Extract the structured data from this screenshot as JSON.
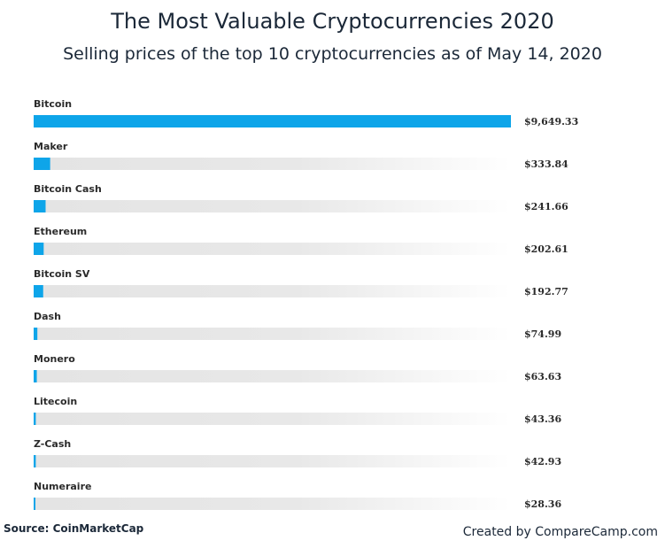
{
  "header": {
    "title": "The Most Valuable Cryptocurrencies 2020",
    "subtitle": "Selling prices of the top 10 cryptocurrencies as of May 14, 2020"
  },
  "footer": {
    "source": "Source: CoinMarketCap",
    "credit": "Created by CompareCamp.com"
  },
  "colors": {
    "bar": "#0ea5e9",
    "track_start": "#e4e4e4",
    "track_end": "#ffffff"
  },
  "chart_data": {
    "type": "bar",
    "orientation": "horizontal",
    "title": "The Most Valuable Cryptocurrencies 2020",
    "subtitle": "Selling prices of the top 10 cryptocurrencies as of May 14, 2020",
    "categories": [
      "Bitcoin",
      "Maker",
      "Bitcoin Cash",
      "Ethereum",
      "Bitcoin SV",
      "Dash",
      "Monero",
      "Litecoin",
      "Z-Cash",
      "Numeraire"
    ],
    "values": [
      9649.33,
      333.84,
      241.66,
      202.61,
      192.77,
      74.99,
      63.63,
      43.36,
      42.93,
      28.36
    ],
    "value_labels": [
      "$9,649.33",
      "$333.84",
      "$241.66",
      "$202.61",
      "$192.77",
      "$74.99",
      "$63.63",
      "$43.36",
      "$42.93",
      "$28.36"
    ],
    "xlim": [
      0,
      9649.33
    ],
    "grid": false,
    "legend": "none"
  }
}
